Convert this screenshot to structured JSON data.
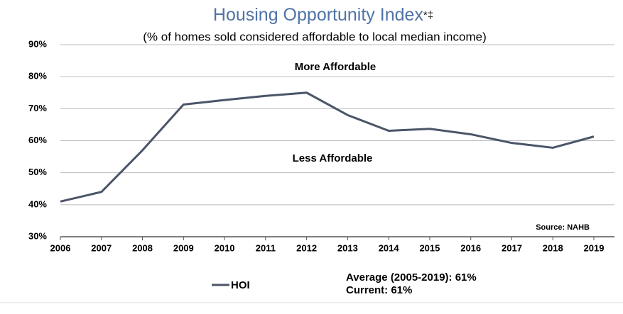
{
  "chart_data": {
    "type": "line",
    "title": "Housing Opportunity Index",
    "title_suffix": "*‡",
    "subtitle": "(% of homes sold considered affordable to local median income)",
    "categories": [
      "2006",
      "2007",
      "2008",
      "2009",
      "2010",
      "2011",
      "2012",
      "2013",
      "2014",
      "2015",
      "2016",
      "2017",
      "2018",
      "2019"
    ],
    "series": [
      {
        "name": "HOI",
        "color": "#4b5568",
        "values": [
          41,
          44,
          57,
          71.3,
          72.7,
          74,
          75,
          68,
          63.1,
          63.7,
          62,
          59.3,
          57.8,
          61.3
        ]
      }
    ],
    "ylim": [
      30,
      90
    ],
    "yticks": [
      {
        "value": 30,
        "label": "30%"
      },
      {
        "value": 40,
        "label": "40%"
      },
      {
        "value": 50,
        "label": "50%"
      },
      {
        "value": 60,
        "label": "60%"
      },
      {
        "value": 70,
        "label": "70%"
      },
      {
        "value": 80,
        "label": "80%"
      },
      {
        "value": 90,
        "label": "90%"
      }
    ],
    "grid": true,
    "annotations": [
      "More Affordable",
      "Less Affordable",
      "Source: NAHB"
    ],
    "notes": [
      "Average (2005-2019): 61%",
      "Current: 61%"
    ]
  }
}
